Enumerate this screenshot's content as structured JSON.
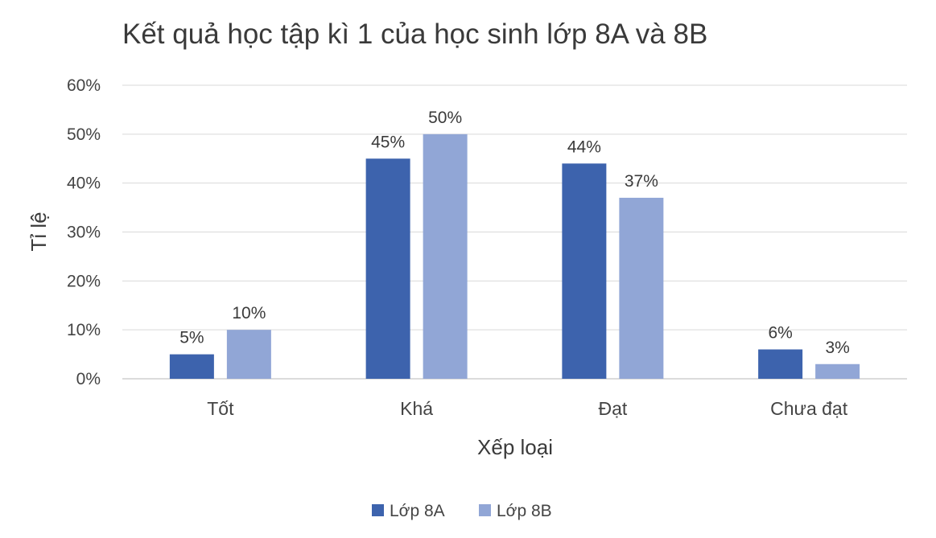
{
  "chart_data": {
    "type": "bar",
    "title": "Kết quả học tập kì 1 của học sinh lớp 8A và 8B",
    "xlabel": "Xếp loại",
    "ylabel": "Tỉ lệ",
    "categories": [
      "Tốt",
      "Khá",
      "Đạt",
      "Chưa đạt"
    ],
    "series": [
      {
        "name": "Lớp 8A",
        "values": [
          5,
          45,
          44,
          6
        ],
        "labels": [
          "5%",
          "45%",
          "44%",
          "6%"
        ],
        "color": "#3d63ad"
      },
      {
        "name": "Lớp 8B",
        "values": [
          10,
          50,
          37,
          3
        ],
        "labels": [
          "10%",
          "50%",
          "37%",
          "3%"
        ],
        "color": "#91a6d6"
      }
    ],
    "ylim": [
      0,
      60
    ],
    "yticks": [
      0,
      10,
      20,
      30,
      40,
      50,
      60
    ],
    "ytick_labels": [
      "0%",
      "10%",
      "20%",
      "30%",
      "40%",
      "50%",
      "60%"
    ],
    "grid": true,
    "legend_position": "bottom"
  }
}
